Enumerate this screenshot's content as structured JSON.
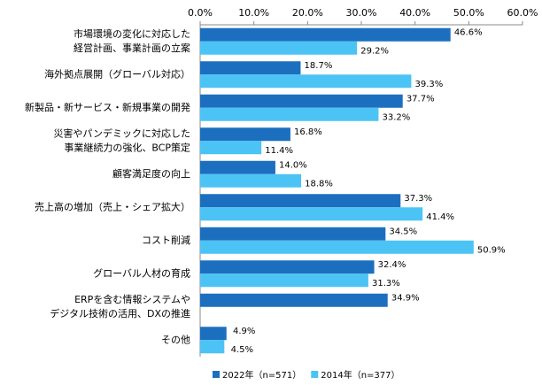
{
  "chart_data": {
    "type": "hbar",
    "categories": [
      "市場環境の変化に対応した\n経営計画、事業計画の立案",
      "海外拠点展開（グローバル対応）",
      "新製品・新サービス・新規事業の開発",
      "災害やパンデミックに対応した\n事業継続力の強化、BCP策定",
      "顧客満足度の向上",
      "売上高の増加（売上・シェア拡大）",
      "コスト削減",
      "グローバル人材の育成",
      "ERPを含む情報システムや\nデジタル技術の活用、DXの推進",
      "その他"
    ],
    "series": [
      {
        "name": "2022年（n=571）",
        "color": "#1c6fbf",
        "values": [
          46.6,
          18.7,
          37.7,
          16.8,
          14.0,
          37.3,
          34.5,
          32.4,
          34.9,
          4.9
        ],
        "value_labels": [
          "46.6%",
          "18.7%",
          "37.7%",
          "16.8%",
          "14.0%",
          "37.3%",
          "34.5%",
          "32.4%",
          "34.9%",
          "4.9%"
        ]
      },
      {
        "name": "2014年（n=377）",
        "color": "#4cc3f5",
        "values": [
          29.2,
          39.3,
          33.2,
          11.4,
          18.8,
          41.4,
          50.9,
          31.3,
          null,
          4.5
        ],
        "value_labels": [
          "29.2%",
          "39.3%",
          "33.2%",
          "11.4%",
          "18.8%",
          "41.4%",
          "50.9%",
          "31.3%",
          null,
          "4.5%"
        ]
      }
    ],
    "xlim": [
      0,
      60
    ],
    "xticks": [
      {
        "value": 0,
        "label": "0.0%"
      },
      {
        "value": 10,
        "label": "10.0%"
      },
      {
        "value": 20,
        "label": "20.0%"
      },
      {
        "value": 30,
        "label": "30.0%"
      },
      {
        "value": 40,
        "label": "40.0%"
      },
      {
        "value": 50,
        "label": "50.0%"
      },
      {
        "value": 60,
        "label": "60.0%"
      }
    ],
    "legend": "bottom"
  }
}
